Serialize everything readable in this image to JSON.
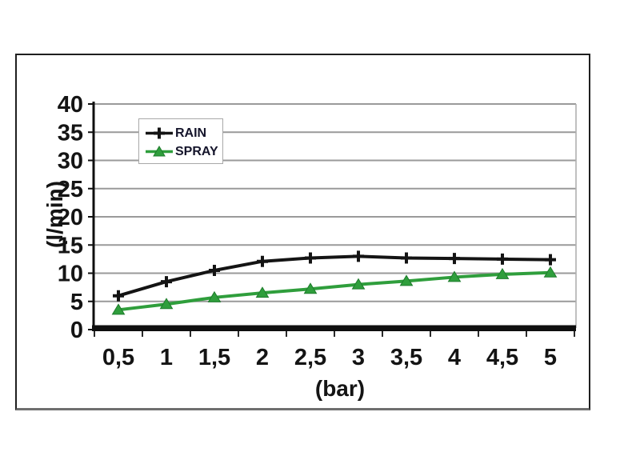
{
  "chart_data": {
    "type": "line",
    "title": "",
    "xlabel": "(bar)",
    "ylabel": "(l/min)",
    "categories": [
      "0,5",
      "1",
      "1,5",
      "2",
      "2,5",
      "3",
      "3,5",
      "4",
      "4,5",
      "5"
    ],
    "series": [
      {
        "name": "RAIN",
        "marker": "plus",
        "color": "#141414",
        "values": [
          6,
          8.5,
          10.5,
          12.1,
          12.7,
          13,
          12.7,
          12.6,
          12.5,
          12.4
        ]
      },
      {
        "name": "SPRAY",
        "marker": "triangle",
        "color": "#2f9e3c",
        "values": [
          3.5,
          4.5,
          5.7,
          6.5,
          7.2,
          8,
          8.6,
          9.3,
          9.8,
          10.1
        ]
      }
    ],
    "ylim": [
      0,
      40
    ],
    "ytick_step": 5,
    "ytick_labels": [
      "0",
      "5",
      "10",
      "15",
      "20",
      "25",
      "30",
      "35",
      "40"
    ],
    "grid": true,
    "legend_position": "top-left"
  },
  "colors": {
    "gridline": "#9a9a9a",
    "axis": "#0f0f0f",
    "plot_right_wall": "#b0b0b0",
    "spray_edge": "#1e7c2c",
    "frame_border": "#1f1f1f",
    "text": "#141414"
  }
}
